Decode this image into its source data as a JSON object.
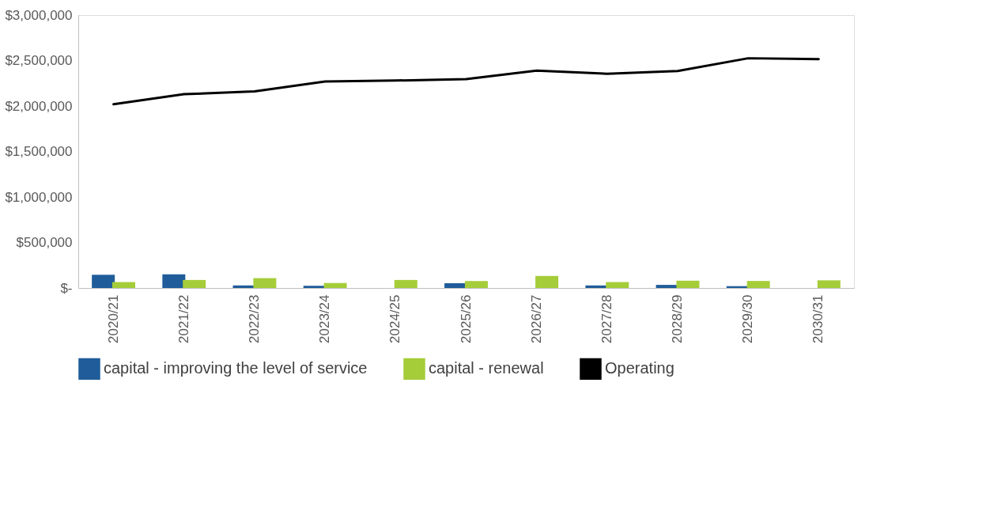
{
  "chart_data": {
    "type": "bar",
    "categories": [
      "2020/21",
      "2021/22",
      "2022/23",
      "2023/24",
      "2024/25",
      "2025/26",
      "2026/27",
      "2027/28",
      "2028/29",
      "2029/30",
      "2030/31"
    ],
    "series": [
      {
        "name": "capital - improving the level of service",
        "color": "#1f5c99",
        "values": [
          145000,
          150000,
          28000,
          24000,
          0,
          52000,
          0,
          28000,
          34000,
          20000,
          0
        ]
      },
      {
        "name": "capital - renewal",
        "color": "#a5cd39",
        "values": [
          65000,
          88000,
          108000,
          55000,
          88000,
          77000,
          132000,
          65000,
          80000,
          77000,
          84000
        ]
      },
      {
        "name": "Operating",
        "color": "#000000",
        "type": "line",
        "values": [
          2020000,
          2130000,
          2160000,
          2270000,
          2280000,
          2295000,
          2390000,
          2355000,
          2385000,
          2525000,
          2515000
        ]
      }
    ],
    "ylim": [
      0,
      3000000
    ],
    "yticks": [
      {
        "value": 0,
        "label": "$-"
      },
      {
        "value": 500000,
        "label": "$500,000"
      },
      {
        "value": 1000000,
        "label": "$1,000,000"
      },
      {
        "value": 1500000,
        "label": "$1,500,000"
      },
      {
        "value": 2000000,
        "label": "$2,000,000"
      },
      {
        "value": 2500000,
        "label": "$2,500,000"
      },
      {
        "value": 3000000,
        "label": "$3,000,000"
      }
    ],
    "grid": false,
    "legend": "bottom"
  }
}
